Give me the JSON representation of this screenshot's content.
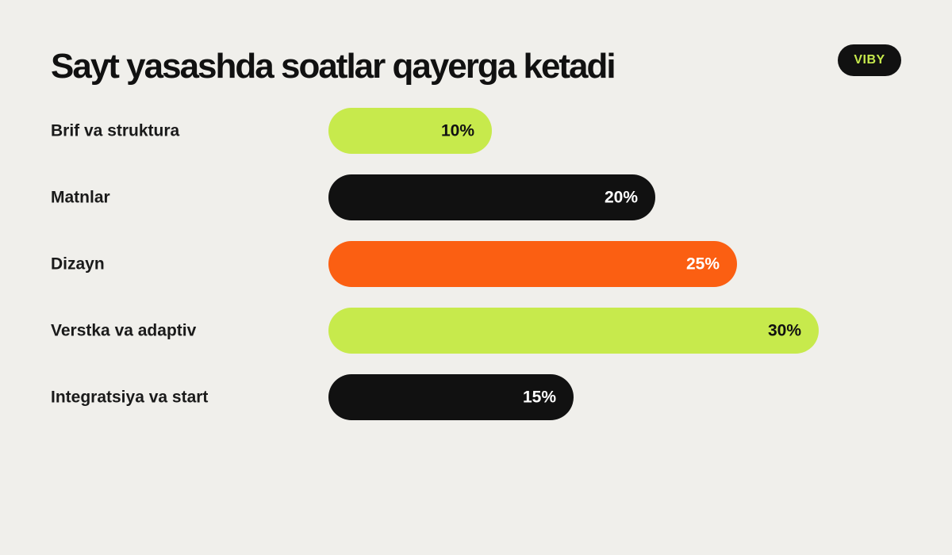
{
  "header": {
    "title": "Sayt yasashda soatlar qayerga ketadi",
    "badge": "VIBY"
  },
  "colors": {
    "background": "#f0efeb",
    "lime": "#c7ea4c",
    "black": "#111111",
    "orange": "#fb5f12"
  },
  "chart_data": {
    "type": "bar",
    "orientation": "horizontal",
    "categories": [
      "Brif va struktura",
      "Matnlar",
      "Dizayn",
      "Verstka va adaptiv",
      "Integratsiya va start"
    ],
    "values": [
      10,
      20,
      25,
      30,
      15
    ],
    "value_labels": [
      "10%",
      "20%",
      "25%",
      "30%",
      "15%"
    ],
    "bar_colors": [
      "#c7ea4c",
      "#111111",
      "#fb5f12",
      "#c7ea4c",
      "#111111"
    ],
    "label_colors": [
      "#111111",
      "#ffffff",
      "#ffffff",
      "#111111",
      "#ffffff"
    ],
    "unit": "%",
    "grid": false,
    "legend": false
  }
}
